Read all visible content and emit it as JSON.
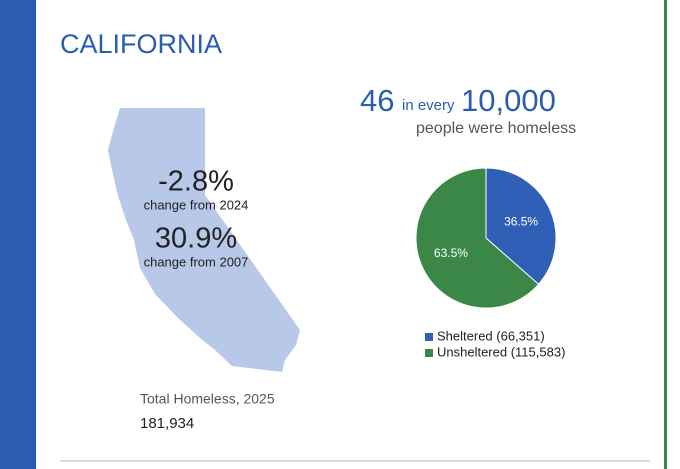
{
  "title": "CALIFORNIA",
  "rate": {
    "number": "46",
    "middle": "in every",
    "base": "10,000",
    "caption": "people were homeless"
  },
  "changes": [
    {
      "value": "-2.8%",
      "label": "change from 2024"
    },
    {
      "value": "30.9%",
      "label": "change from 2007"
    }
  ],
  "total": {
    "label": "Total Homeless, 2025",
    "value": "181,934"
  },
  "chart_data": {
    "type": "pie",
    "categories": [
      "Sheltered (66,351)",
      "Unsheltered (115,583)"
    ],
    "values": [
      36.5,
      63.5
    ],
    "value_labels": [
      "36.5%",
      "63.5%"
    ],
    "colors": [
      "#2f5fb6",
      "#3a8748"
    ]
  }
}
